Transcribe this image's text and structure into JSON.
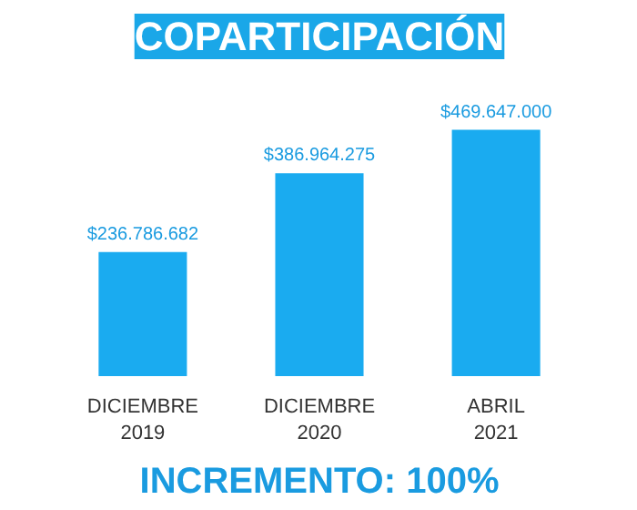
{
  "chart_data": {
    "type": "bar",
    "title": "COPARTICIPACIÓN",
    "categories": [
      "DICIEMBRE\n2019",
      "DICIEMBRE\n2020",
      "ABRIL\n2021"
    ],
    "values": [
      236786682,
      386964275,
      469647000
    ],
    "value_labels": [
      "$236.786.682",
      "$386.964.275",
      "$469.647.000"
    ],
    "color": "#1aabf0",
    "annotations": [
      "INCREMENTO: 100%"
    ]
  }
}
